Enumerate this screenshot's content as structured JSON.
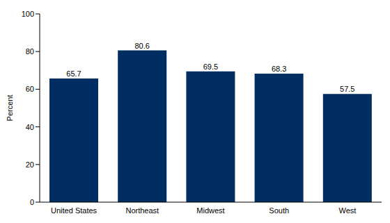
{
  "chart_data": {
    "type": "bar",
    "y_label": "Percent",
    "categories": [
      "United States",
      "Northeast",
      "Midwest",
      "South",
      "West"
    ],
    "values": [
      65.7,
      80.6,
      69.5,
      68.3,
      57.5
    ],
    "color": "#002d62",
    "ylim": [
      0,
      100
    ],
    "yticks": [
      0,
      20,
      40,
      60,
      80,
      100
    ],
    "grid": false,
    "data_labels": true
  }
}
